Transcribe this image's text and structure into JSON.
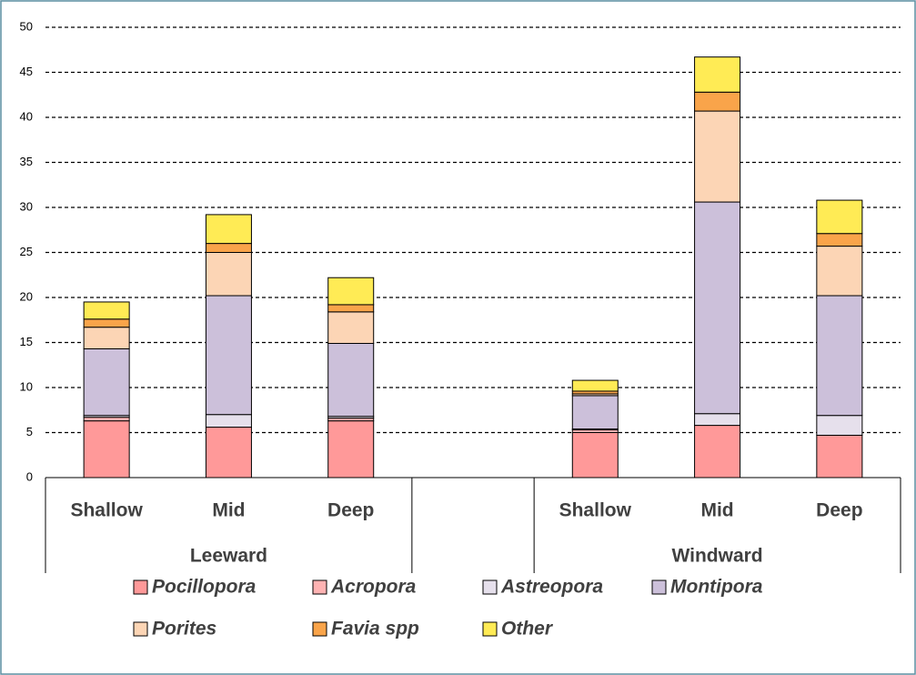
{
  "chart_data": {
    "type": "stacked_bar",
    "categories": [
      "Shallow",
      "Mid",
      "Deep",
      null,
      "Shallow",
      "Mid",
      "Deep"
    ],
    "groups": [
      {
        "name": "Leeward",
        "size": 3
      },
      {
        "name": null,
        "size": 1
      },
      {
        "name": "Windward",
        "size": 3
      }
    ],
    "series": [
      {
        "name": "Pocillopora",
        "color": "#ff9999",
        "values": [
          6.3,
          5.6,
          6.3,
          null,
          5.0,
          5.8,
          4.7
        ]
      },
      {
        "name": "Acropora",
        "color": "#ffb3b3",
        "values": [
          0.4,
          0,
          0.3,
          null,
          0.3,
          0,
          0
        ]
      },
      {
        "name": "Astreopora",
        "color": "#e6e0ec",
        "values": [
          0.2,
          1.4,
          0.2,
          null,
          0.1,
          1.3,
          2.2
        ]
      },
      {
        "name": "Montipora",
        "color": "#ccc0da",
        "values": [
          7.4,
          13.2,
          8.1,
          null,
          3.7,
          23.5,
          13.3
        ]
      },
      {
        "name": "Porites",
        "color": "#fcd5b5",
        "values": [
          2.4,
          4.8,
          3.5,
          null,
          0.2,
          10.1,
          5.5
        ]
      },
      {
        "name": "Favia spp",
        "color": "#f9a44a",
        "values": [
          0.9,
          1.0,
          0.8,
          null,
          0.3,
          2.1,
          1.4
        ]
      },
      {
        "name": "Other",
        "color": "#ffeb55",
        "values": [
          1.9,
          3.2,
          3.0,
          null,
          1.2,
          3.9,
          3.7
        ]
      }
    ],
    "ylim": [
      0,
      50
    ],
    "yticks": [
      0,
      5,
      10,
      15,
      20,
      25,
      30,
      35,
      40,
      45,
      50
    ],
    "grid": true
  }
}
